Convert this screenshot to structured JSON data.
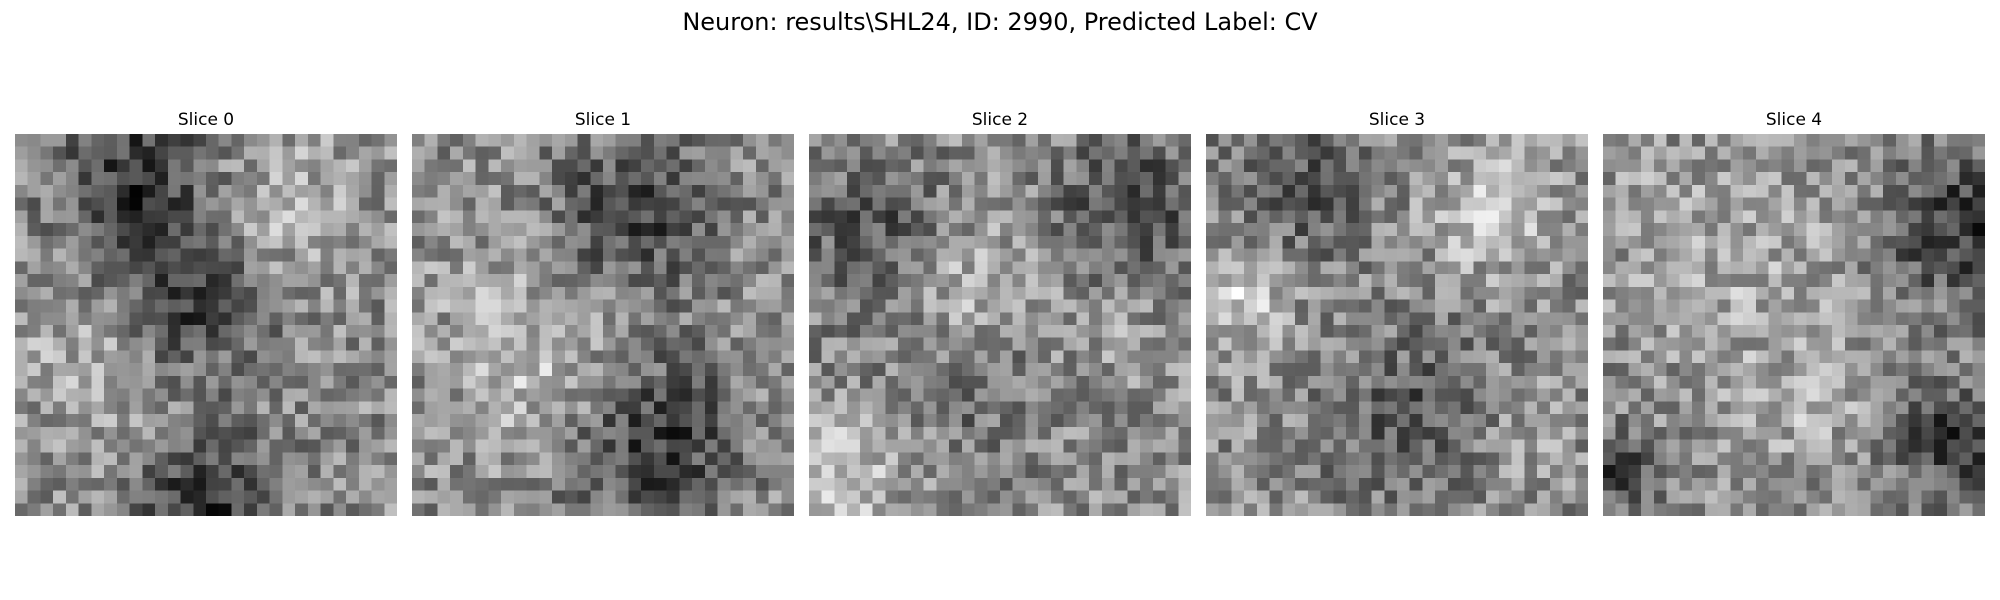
{
  "figure": {
    "title": "Neuron: results\\SHL24, ID: 2990, Predicted Label: CV",
    "colormap": "gray",
    "slices": [
      {
        "label": "Slice 0"
      },
      {
        "label": "Slice 1"
      },
      {
        "label": "Slice 2"
      },
      {
        "label": "Slice 3"
      },
      {
        "label": "Slice 4"
      }
    ]
  }
}
